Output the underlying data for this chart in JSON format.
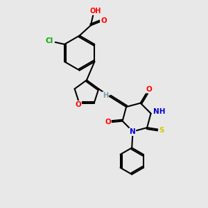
{
  "bg_color": "#e8e8e8",
  "bond_color": "#000000",
  "bond_width": 1.5,
  "atom_colors": {
    "O": "#ff0000",
    "N": "#0000cd",
    "S": "#cccc00",
    "Cl": "#00aa00",
    "H": "#7c9cac",
    "C": "#000000"
  },
  "font_size": 7.5,
  "fig_width": 3.0,
  "fig_height": 3.0,
  "dpi": 100
}
